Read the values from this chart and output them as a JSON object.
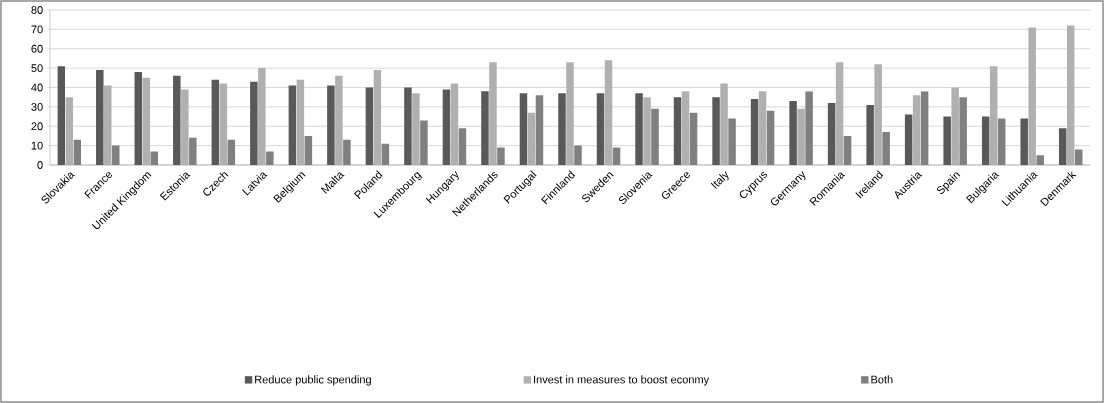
{
  "chart_data": {
    "type": "bar",
    "categories": [
      "Slovakia",
      "France",
      "United Kingdom",
      "Estonia",
      "Czech",
      "Latvia",
      "Belgium",
      "Malta",
      "Poland",
      "Luxembourg",
      "Hungary",
      "Netherlands",
      "Portugal",
      "Finnland",
      "Sweden",
      "Slovenia",
      "Greece",
      "Italy",
      "Cyprus",
      "Germany",
      "Romania",
      "Ireland",
      "Austria",
      "Spain",
      "Bulgaria",
      "Lithuania",
      "Denmark"
    ],
    "series": [
      {
        "name": "Reduce public spending",
        "color": "#595959",
        "values": [
          51,
          49,
          48,
          46,
          44,
          43,
          41,
          41,
          40,
          40,
          39,
          38,
          37,
          37,
          37,
          37,
          35,
          35,
          34,
          33,
          32,
          31,
          26,
          25,
          25,
          24,
          19
        ]
      },
      {
        "name": "Invest in measures to boost econmy",
        "color": "#b0b0b0",
        "values": [
          35,
          41,
          45,
          39,
          42,
          50,
          44,
          46,
          49,
          37,
          42,
          53,
          27,
          53,
          54,
          35,
          38,
          42,
          38,
          29,
          53,
          52,
          36,
          40,
          51,
          71,
          72
        ]
      },
      {
        "name": "Both",
        "color": "#808080",
        "values": [
          13,
          10,
          7,
          14,
          13,
          7,
          15,
          13,
          11,
          23,
          19,
          9,
          36,
          10,
          9,
          29,
          27,
          24,
          28,
          38,
          15,
          17,
          38,
          35,
          24,
          5,
          8
        ]
      }
    ],
    "ylim": [
      0,
      80
    ],
    "yticks": [
      0,
      10,
      20,
      30,
      40,
      50,
      60,
      70,
      80
    ],
    "grid": "y",
    "legend": "bottom"
  }
}
